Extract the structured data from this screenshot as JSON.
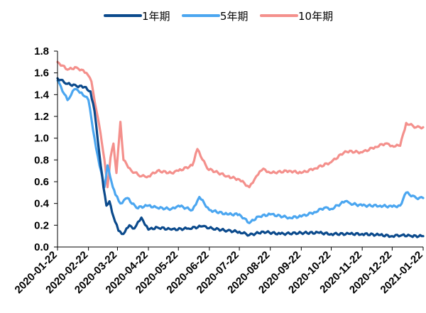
{
  "chart_data": {
    "type": "line",
    "title": "",
    "xlabel": "",
    "ylabel": "",
    "ylim": [
      0.0,
      1.8
    ],
    "yticks": [
      "0.0",
      "0.2",
      "0.4",
      "0.6",
      "0.8",
      "1.0",
      "1.2",
      "1.4",
      "1.6",
      "1.8"
    ],
    "x_tick_labels": [
      "2020-01-22",
      "2020-02-22",
      "2020-03-22",
      "2020-04-22",
      "2020-05-22",
      "2020-06-22",
      "2020-07-22",
      "2020-08-22",
      "2020-09-22",
      "2020-10-22",
      "2020-11-22",
      "2020-12-22",
      "2021-01-22"
    ],
    "x_range": [
      "2020-01-22",
      "2021-01-22"
    ],
    "grid": false,
    "legend_position": "top",
    "series": [
      {
        "name": "1年期",
        "color": "#0b4a8c",
        "x": [
          "2020-01-22",
          "2020-02-01",
          "2020-02-10",
          "2020-02-18",
          "2020-02-24",
          "2020-02-28",
          "2020-03-04",
          "2020-03-08",
          "2020-03-11",
          "2020-03-14",
          "2020-03-18",
          "2020-03-23",
          "2020-03-28",
          "2020-04-03",
          "2020-04-08",
          "2020-04-15",
          "2020-04-22",
          "2020-05-01",
          "2020-05-15",
          "2020-06-01",
          "2020-06-15",
          "2020-06-25",
          "2020-07-10",
          "2020-07-22",
          "2020-08-01",
          "2020-08-15",
          "2020-09-01",
          "2020-09-22",
          "2020-10-10",
          "2020-10-22",
          "2020-11-10",
          "2020-11-22",
          "2020-12-10",
          "2020-12-22",
          "2021-01-01",
          "2021-01-10",
          "2021-01-22"
        ],
        "values": [
          1.55,
          1.5,
          1.48,
          1.47,
          1.43,
          1.25,
          0.85,
          0.55,
          0.38,
          0.42,
          0.28,
          0.15,
          0.12,
          0.2,
          0.17,
          0.27,
          0.16,
          0.18,
          0.16,
          0.17,
          0.19,
          0.17,
          0.15,
          0.14,
          0.11,
          0.14,
          0.12,
          0.13,
          0.13,
          0.12,
          0.12,
          0.12,
          0.11,
          0.1,
          0.11,
          0.1,
          0.1
        ]
      },
      {
        "name": "5年期",
        "color": "#4ba6f0",
        "x": [
          "2020-01-22",
          "2020-02-01",
          "2020-02-08",
          "2020-02-15",
          "2020-02-22",
          "2020-02-28",
          "2020-03-04",
          "2020-03-09",
          "2020-03-12",
          "2020-03-16",
          "2020-03-20",
          "2020-03-25",
          "2020-04-01",
          "2020-04-10",
          "2020-04-22",
          "2020-05-01",
          "2020-05-15",
          "2020-05-22",
          "2020-06-05",
          "2020-06-12",
          "2020-06-22",
          "2020-07-10",
          "2020-07-22",
          "2020-08-01",
          "2020-08-10",
          "2020-08-22",
          "2020-09-10",
          "2020-09-22",
          "2020-10-05",
          "2020-10-15",
          "2020-10-22",
          "2020-11-05",
          "2020-11-10",
          "2020-11-22",
          "2020-12-10",
          "2020-12-22",
          "2020-12-30",
          "2021-01-05",
          "2021-01-15",
          "2021-01-22"
        ],
        "values": [
          1.53,
          1.35,
          1.45,
          1.42,
          1.35,
          1.0,
          0.75,
          0.55,
          0.75,
          0.6,
          0.48,
          0.4,
          0.45,
          0.36,
          0.38,
          0.36,
          0.35,
          0.38,
          0.34,
          0.46,
          0.34,
          0.3,
          0.3,
          0.22,
          0.28,
          0.3,
          0.27,
          0.28,
          0.32,
          0.36,
          0.35,
          0.42,
          0.4,
          0.38,
          0.38,
          0.37,
          0.38,
          0.5,
          0.45,
          0.45
        ]
      },
      {
        "name": "10年期",
        "color": "#f4908c",
        "x": [
          "2020-01-22",
          "2020-02-01",
          "2020-02-10",
          "2020-02-20",
          "2020-02-25",
          "2020-03-01",
          "2020-03-05",
          "2020-03-09",
          "2020-03-12",
          "2020-03-15",
          "2020-03-18",
          "2020-03-21",
          "2020-03-25",
          "2020-03-28",
          "2020-04-05",
          "2020-04-15",
          "2020-04-22",
          "2020-05-01",
          "2020-05-15",
          "2020-05-22",
          "2020-06-05",
          "2020-06-10",
          "2020-06-20",
          "2020-07-10",
          "2020-07-22",
          "2020-08-01",
          "2020-08-08",
          "2020-08-15",
          "2020-08-22",
          "2020-09-10",
          "2020-09-22",
          "2020-10-05",
          "2020-10-22",
          "2020-11-05",
          "2020-11-22",
          "2020-12-05",
          "2020-12-15",
          "2020-12-22",
          "2020-12-30",
          "2021-01-05",
          "2021-01-15",
          "2021-01-22"
        ],
        "values": [
          1.7,
          1.63,
          1.65,
          1.6,
          1.52,
          1.25,
          1.05,
          0.8,
          0.55,
          0.82,
          0.95,
          0.68,
          1.15,
          0.8,
          0.7,
          0.65,
          0.65,
          0.7,
          0.68,
          0.7,
          0.75,
          0.9,
          0.72,
          0.65,
          0.62,
          0.55,
          0.65,
          0.72,
          0.68,
          0.7,
          0.68,
          0.72,
          0.78,
          0.88,
          0.87,
          0.92,
          0.95,
          0.93,
          0.93,
          1.14,
          1.1,
          1.1
        ]
      }
    ]
  }
}
